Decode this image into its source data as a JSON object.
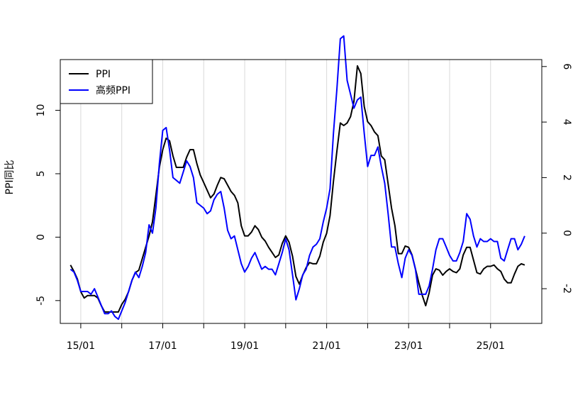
{
  "chart_data": {
    "type": "line",
    "ylabel": "PPI同比",
    "x_range": [
      "2014-07",
      "2026-04"
    ],
    "x_ticks": [
      "15/01",
      "17/01",
      "19/01",
      "21/01",
      "23/01",
      "25/01"
    ],
    "x_tick_dates": [
      "2015-01",
      "2017-01",
      "2019-01",
      "2021-01",
      "2023-01",
      "2025-01"
    ],
    "x_minor_tick_dates": [
      "2016-01",
      "2018-01",
      "2020-01",
      "2022-01",
      "2024-01"
    ],
    "y_left_range": [
      -6.8,
      14
    ],
    "y_left_ticks": [
      "-5",
      "0",
      "5",
      "10"
    ],
    "y_left_tick_values": [
      -5,
      0,
      5,
      10
    ],
    "y_right_range": [
      -3.25,
      6.25
    ],
    "y_right_ticks": [
      "-2",
      "0",
      "2",
      "4",
      "6"
    ],
    "y_right_tick_values": [
      -2,
      0,
      2,
      4,
      6
    ],
    "grid": "vertical",
    "legend_position": "top-left",
    "series": [
      {
        "name": "PPI",
        "axis": "left",
        "color": "#000000",
        "points": [
          [
            "2014-10",
            -2.2
          ],
          [
            "2014-11",
            -2.7
          ],
          [
            "2014-12",
            -3.3
          ],
          [
            "2015-01",
            -4.3
          ],
          [
            "2015-02",
            -4.8
          ],
          [
            "2015-03",
            -4.6
          ],
          [
            "2015-04",
            -4.6
          ],
          [
            "2015-05",
            -4.6
          ],
          [
            "2015-06",
            -4.8
          ],
          [
            "2015-07",
            -5.4
          ],
          [
            "2015-08",
            -5.9
          ],
          [
            "2015-09",
            -5.9
          ],
          [
            "2015-10",
            -5.9
          ],
          [
            "2015-11",
            -5.9
          ],
          [
            "2015-12",
            -5.9
          ],
          [
            "2016-01",
            -5.3
          ],
          [
            "2016-02",
            -4.9
          ],
          [
            "2016-03",
            -4.3
          ],
          [
            "2016-04",
            -3.4
          ],
          [
            "2016-05",
            -2.8
          ],
          [
            "2016-06",
            -2.6
          ],
          [
            "2016-07",
            -1.7
          ],
          [
            "2016-08",
            -0.8
          ],
          [
            "2016-09",
            0.1
          ],
          [
            "2016-10",
            1.2
          ],
          [
            "2016-11",
            3.3
          ],
          [
            "2016-12",
            5.5
          ],
          [
            "2017-01",
            6.9
          ],
          [
            "2017-02",
            7.8
          ],
          [
            "2017-03",
            7.6
          ],
          [
            "2017-04",
            6.4
          ],
          [
            "2017-05",
            5.5
          ],
          [
            "2017-06",
            5.5
          ],
          [
            "2017-07",
            5.5
          ],
          [
            "2017-08",
            6.3
          ],
          [
            "2017-09",
            6.9
          ],
          [
            "2017-10",
            6.9
          ],
          [
            "2017-11",
            5.8
          ],
          [
            "2017-12",
            4.9
          ],
          [
            "2018-01",
            4.3
          ],
          [
            "2018-02",
            3.7
          ],
          [
            "2018-03",
            3.1
          ],
          [
            "2018-04",
            3.4
          ],
          [
            "2018-05",
            4.1
          ],
          [
            "2018-06",
            4.7
          ],
          [
            "2018-07",
            4.6
          ],
          [
            "2018-08",
            4.1
          ],
          [
            "2018-09",
            3.6
          ],
          [
            "2018-10",
            3.3
          ],
          [
            "2018-11",
            2.7
          ],
          [
            "2018-12",
            0.9
          ],
          [
            "2019-01",
            0.1
          ],
          [
            "2019-02",
            0.1
          ],
          [
            "2019-03",
            0.4
          ],
          [
            "2019-04",
            0.9
          ],
          [
            "2019-05",
            0.6
          ],
          [
            "2019-06",
            0.0
          ],
          [
            "2019-07",
            -0.3
          ],
          [
            "2019-08",
            -0.8
          ],
          [
            "2019-09",
            -1.2
          ],
          [
            "2019-10",
            -1.6
          ],
          [
            "2019-11",
            -1.4
          ],
          [
            "2019-12",
            -0.5
          ],
          [
            "2020-01",
            0.1
          ],
          [
            "2020-02",
            -0.4
          ],
          [
            "2020-03",
            -1.5
          ],
          [
            "2020-04",
            -3.1
          ],
          [
            "2020-05",
            -3.7
          ],
          [
            "2020-06",
            -3.0
          ],
          [
            "2020-07",
            -2.4
          ],
          [
            "2020-08",
            -2.0
          ],
          [
            "2020-09",
            -2.1
          ],
          [
            "2020-10",
            -2.1
          ],
          [
            "2020-11",
            -1.5
          ],
          [
            "2020-12",
            -0.4
          ],
          [
            "2021-01",
            0.3
          ],
          [
            "2021-02",
            1.7
          ],
          [
            "2021-03",
            4.4
          ],
          [
            "2021-04",
            6.8
          ],
          [
            "2021-05",
            9.0
          ],
          [
            "2021-06",
            8.8
          ],
          [
            "2021-07",
            9.0
          ],
          [
            "2021-08",
            9.5
          ],
          [
            "2021-09",
            10.7
          ],
          [
            "2021-10",
            13.5
          ],
          [
            "2021-11",
            12.9
          ],
          [
            "2021-12",
            10.3
          ],
          [
            "2022-01",
            9.1
          ],
          [
            "2022-02",
            8.8
          ],
          [
            "2022-03",
            8.3
          ],
          [
            "2022-04",
            8.0
          ],
          [
            "2022-05",
            6.4
          ],
          [
            "2022-06",
            6.1
          ],
          [
            "2022-07",
            4.2
          ],
          [
            "2022-08",
            2.3
          ],
          [
            "2022-09",
            0.9
          ],
          [
            "2022-10",
            -1.3
          ],
          [
            "2022-11",
            -1.3
          ],
          [
            "2022-12",
            -0.7
          ],
          [
            "2023-01",
            -0.8
          ],
          [
            "2023-02",
            -1.4
          ],
          [
            "2023-03",
            -2.5
          ],
          [
            "2023-04",
            -3.6
          ],
          [
            "2023-05",
            -4.6
          ],
          [
            "2023-06",
            -5.4
          ],
          [
            "2023-07",
            -4.4
          ],
          [
            "2023-08",
            -3.0
          ],
          [
            "2023-09",
            -2.5
          ],
          [
            "2023-10",
            -2.6
          ],
          [
            "2023-11",
            -3.0
          ],
          [
            "2023-12",
            -2.7
          ],
          [
            "2024-01",
            -2.5
          ],
          [
            "2024-02",
            -2.7
          ],
          [
            "2024-03",
            -2.8
          ],
          [
            "2024-04",
            -2.5
          ],
          [
            "2024-05",
            -1.4
          ],
          [
            "2024-06",
            -0.8
          ],
          [
            "2024-07",
            -0.8
          ],
          [
            "2024-08",
            -1.8
          ],
          [
            "2024-09",
            -2.8
          ],
          [
            "2024-10",
            -2.9
          ],
          [
            "2024-11",
            -2.5
          ],
          [
            "2024-12",
            -2.3
          ],
          [
            "2025-01",
            -2.3
          ],
          [
            "2025-02",
            -2.2
          ],
          [
            "2025-03",
            -2.5
          ],
          [
            "2025-04",
            -2.7
          ],
          [
            "2025-05",
            -3.3
          ],
          [
            "2025-06",
            -3.6
          ],
          [
            "2025-07",
            -3.6
          ],
          [
            "2025-08",
            -2.9
          ],
          [
            "2025-09",
            -2.3
          ],
          [
            "2025-10",
            -2.1
          ],
          [
            "2025-11",
            -2.2
          ]
        ]
      },
      {
        "name": "高频PPI",
        "axis": "right",
        "color": "#0000ff",
        "points": [
          [
            "2014-10",
            -1.3
          ],
          [
            "2014-11",
            -1.4
          ],
          [
            "2014-12",
            -1.7
          ],
          [
            "2015-01",
            -2.1
          ],
          [
            "2015-02",
            -2.1
          ],
          [
            "2015-03",
            -2.1
          ],
          [
            "2015-04",
            -2.2
          ],
          [
            "2015-05",
            -2.0
          ],
          [
            "2015-06",
            -2.3
          ],
          [
            "2015-07",
            -2.6
          ],
          [
            "2015-08",
            -2.9
          ],
          [
            "2015-09",
            -2.9
          ],
          [
            "2015-10",
            -2.8
          ],
          [
            "2015-11",
            -3.0
          ],
          [
            "2015-12",
            -3.1
          ],
          [
            "2016-01",
            -2.8
          ],
          [
            "2016-02",
            -2.5
          ],
          [
            "2016-03",
            -2.1
          ],
          [
            "2016-04",
            -1.7
          ],
          [
            "2016-05",
            -1.4
          ],
          [
            "2016-06",
            -1.6
          ],
          [
            "2016-07",
            -1.2
          ],
          [
            "2016-08",
            -0.7
          ],
          [
            "2016-09",
            0.3
          ],
          [
            "2016-10",
            0.0
          ],
          [
            "2016-11",
            0.9
          ],
          [
            "2016-12",
            2.5
          ],
          [
            "2017-01",
            3.7
          ],
          [
            "2017-02",
            3.8
          ],
          [
            "2017-03",
            3.0
          ],
          [
            "2017-04",
            2.0
          ],
          [
            "2017-05",
            1.9
          ],
          [
            "2017-06",
            1.8
          ],
          [
            "2017-07",
            2.2
          ],
          [
            "2017-08",
            2.6
          ],
          [
            "2017-09",
            2.4
          ],
          [
            "2017-10",
            2.0
          ],
          [
            "2017-11",
            1.1
          ],
          [
            "2017-12",
            1.0
          ],
          [
            "2018-01",
            0.9
          ],
          [
            "2018-02",
            0.7
          ],
          [
            "2018-03",
            0.8
          ],
          [
            "2018-04",
            1.2
          ],
          [
            "2018-05",
            1.4
          ],
          [
            "2018-06",
            1.5
          ],
          [
            "2018-07",
            0.9
          ],
          [
            "2018-08",
            0.1
          ],
          [
            "2018-09",
            -0.2
          ],
          [
            "2018-10",
            -0.1
          ],
          [
            "2018-11",
            -0.6
          ],
          [
            "2018-12",
            -1.1
          ],
          [
            "2019-01",
            -1.4
          ],
          [
            "2019-02",
            -1.2
          ],
          [
            "2019-03",
            -0.9
          ],
          [
            "2019-04",
            -0.7
          ],
          [
            "2019-05",
            -1.0
          ],
          [
            "2019-06",
            -1.3
          ],
          [
            "2019-07",
            -1.2
          ],
          [
            "2019-08",
            -1.3
          ],
          [
            "2019-09",
            -1.3
          ],
          [
            "2019-10",
            -1.5
          ],
          [
            "2019-11",
            -1.1
          ],
          [
            "2019-12",
            -0.7
          ],
          [
            "2020-01",
            -0.2
          ],
          [
            "2020-02",
            -0.6
          ],
          [
            "2020-03",
            -1.5
          ],
          [
            "2020-04",
            -2.4
          ],
          [
            "2020-05",
            -2.0
          ],
          [
            "2020-06",
            -1.5
          ],
          [
            "2020-07",
            -1.3
          ],
          [
            "2020-08",
            -0.8
          ],
          [
            "2020-09",
            -0.5
          ],
          [
            "2020-10",
            -0.4
          ],
          [
            "2020-11",
            -0.2
          ],
          [
            "2020-12",
            0.4
          ],
          [
            "2021-01",
            0.9
          ],
          [
            "2021-02",
            1.6
          ],
          [
            "2021-03",
            3.6
          ],
          [
            "2021-04",
            5.2
          ],
          [
            "2021-05",
            7.0
          ],
          [
            "2021-06",
            7.1
          ],
          [
            "2021-07",
            5.5
          ],
          [
            "2021-08",
            5.0
          ],
          [
            "2021-09",
            4.5
          ],
          [
            "2021-10",
            4.8
          ],
          [
            "2021-11",
            4.9
          ],
          [
            "2021-12",
            3.6
          ],
          [
            "2022-01",
            2.4
          ],
          [
            "2022-02",
            2.8
          ],
          [
            "2022-03",
            2.8
          ],
          [
            "2022-04",
            3.1
          ],
          [
            "2022-05",
            2.4
          ],
          [
            "2022-06",
            1.8
          ],
          [
            "2022-07",
            0.7
          ],
          [
            "2022-08",
            -0.5
          ],
          [
            "2022-09",
            -0.5
          ],
          [
            "2022-10",
            -1.1
          ],
          [
            "2022-11",
            -1.6
          ],
          [
            "2022-12",
            -0.9
          ],
          [
            "2023-01",
            -0.6
          ],
          [
            "2023-02",
            -0.8
          ],
          [
            "2023-03",
            -1.3
          ],
          [
            "2023-04",
            -2.2
          ],
          [
            "2023-05",
            -2.2
          ],
          [
            "2023-06",
            -2.2
          ],
          [
            "2023-07",
            -1.9
          ],
          [
            "2023-08",
            -1.3
          ],
          [
            "2023-09",
            -0.6
          ],
          [
            "2023-10",
            -0.2
          ],
          [
            "2023-11",
            -0.2
          ],
          [
            "2023-12",
            -0.5
          ],
          [
            "2024-01",
            -0.8
          ],
          [
            "2024-02",
            -1.0
          ],
          [
            "2024-03",
            -1.0
          ],
          [
            "2024-04",
            -0.7
          ],
          [
            "2024-05",
            -0.3
          ],
          [
            "2024-06",
            0.7
          ],
          [
            "2024-07",
            0.5
          ],
          [
            "2024-08",
            -0.1
          ],
          [
            "2024-09",
            -0.5
          ],
          [
            "2024-10",
            -0.2
          ],
          [
            "2024-11",
            -0.3
          ],
          [
            "2024-12",
            -0.3
          ],
          [
            "2025-01",
            -0.2
          ],
          [
            "2025-02",
            -0.3
          ],
          [
            "2025-03",
            -0.3
          ],
          [
            "2025-04",
            -0.9
          ],
          [
            "2025-05",
            -1.0
          ],
          [
            "2025-06",
            -0.6
          ],
          [
            "2025-07",
            -0.2
          ],
          [
            "2025-08",
            -0.2
          ],
          [
            "2025-09",
            -0.6
          ],
          [
            "2025-10",
            -0.4
          ],
          [
            "2025-11",
            -0.1
          ]
        ]
      }
    ]
  }
}
